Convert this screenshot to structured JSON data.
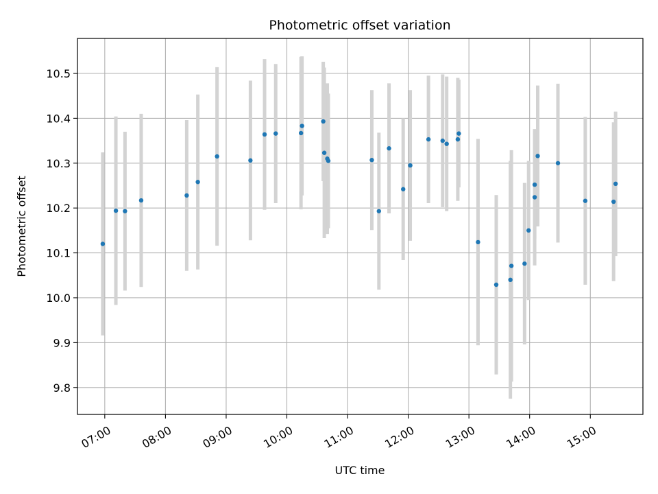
{
  "chart_data": {
    "type": "scatter",
    "title": "Photometric offset variation",
    "xlabel": "UTC time",
    "ylabel": "Photometric offset",
    "xlim": [
      "06:33",
      "15:52"
    ],
    "ylim": [
      9.74,
      10.578
    ],
    "grid": true,
    "x_ticks": [
      "07:00",
      "08:00",
      "09:00",
      "10:00",
      "11:00",
      "12:00",
      "13:00",
      "14:00",
      "15:00"
    ],
    "y_ticks": [
      "9.8",
      "9.9",
      "10.0",
      "10.1",
      "10.2",
      "10.3",
      "10.4",
      "10.5"
    ],
    "marker_color": "#1f77b4",
    "errorbar_color": "#d3d3d3",
    "points": [
      {
        "x": "06:58",
        "y": 10.12,
        "err": 0.204
      },
      {
        "x": "07:11",
        "y": 10.194,
        "err": 0.21
      },
      {
        "x": "07:20",
        "y": 10.193,
        "err": 0.177
      },
      {
        "x": "07:36",
        "y": 10.217,
        "err": 0.193
      },
      {
        "x": "08:21",
        "y": 10.228,
        "err": 0.168
      },
      {
        "x": "08:32",
        "y": 10.258,
        "err": 0.195
      },
      {
        "x": "08:51",
        "y": 10.315,
        "err": 0.199
      },
      {
        "x": "09:24",
        "y": 10.306,
        "err": 0.178
      },
      {
        "x": "09:38",
        "y": 10.364,
        "err": 0.168
      },
      {
        "x": "09:49",
        "y": 10.366,
        "err": 0.155
      },
      {
        "x": "10:14",
        "y": 10.367,
        "err": 0.17
      },
      {
        "x": "10:15",
        "y": 10.383,
        "err": 0.155
      },
      {
        "x": "10:36",
        "y": 10.393,
        "err": 0.133
      },
      {
        "x": "10:37",
        "y": 10.323,
        "err": 0.19
      },
      {
        "x": "10:40",
        "y": 10.31,
        "err": 0.168
      },
      {
        "x": "10:41",
        "y": 10.305,
        "err": 0.15
      },
      {
        "x": "11:24",
        "y": 10.307,
        "err": 0.156
      },
      {
        "x": "11:31",
        "y": 10.193,
        "err": 0.175
      },
      {
        "x": "11:41",
        "y": 10.333,
        "err": 0.145
      },
      {
        "x": "11:55",
        "y": 10.242,
        "err": 0.158
      },
      {
        "x": "12:02",
        "y": 10.295,
        "err": 0.168
      },
      {
        "x": "12:20",
        "y": 10.353,
        "err": 0.142
      },
      {
        "x": "12:34",
        "y": 10.35,
        "err": 0.148
      },
      {
        "x": "12:38",
        "y": 10.343,
        "err": 0.15
      },
      {
        "x": "12:49",
        "y": 10.353,
        "err": 0.137
      },
      {
        "x": "12:50",
        "y": 10.366,
        "err": 0.12
      },
      {
        "x": "13:09",
        "y": 10.124,
        "err": 0.23
      },
      {
        "x": "13:27",
        "y": 10.029,
        "err": 0.2
      },
      {
        "x": "13:41",
        "y": 10.04,
        "err": 0.265
      },
      {
        "x": "13:42",
        "y": 10.071,
        "err": 0.258
      },
      {
        "x": "13:55",
        "y": 10.076,
        "err": 0.18
      },
      {
        "x": "13:59",
        "y": 10.15,
        "err": 0.155
      },
      {
        "x": "14:05",
        "y": 10.252,
        "err": 0.12
      },
      {
        "x": "14:05",
        "y": 10.224,
        "err": 0.152
      },
      {
        "x": "14:08",
        "y": 10.316,
        "err": 0.157
      },
      {
        "x": "14:28",
        "y": 10.3,
        "err": 0.177
      },
      {
        "x": "14:55",
        "y": 10.216,
        "err": 0.187
      },
      {
        "x": "15:23",
        "y": 10.214,
        "err": 0.177
      },
      {
        "x": "15:25",
        "y": 10.254,
        "err": 0.161
      }
    ]
  }
}
